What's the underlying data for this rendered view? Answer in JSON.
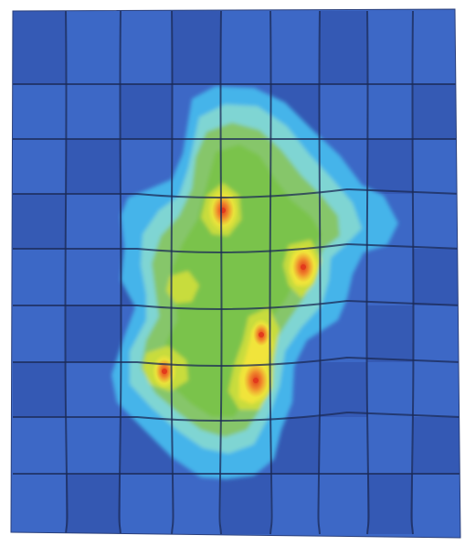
{
  "image": {
    "kind": "fem-contour-plot",
    "colors": {
      "background": "#ffffff",
      "mesh_base": "#3d68c6",
      "mesh_shade": "#3458b2",
      "mesh_line": "#1b2a55",
      "contour_levels": [
        "#45b4ea",
        "#7fd5d3",
        "#86c66a",
        "#7ac34c",
        "#c8dc3c",
        "#f1e43a",
        "#f08a2c",
        "#e23a1c"
      ]
    },
    "hotspots": [
      {
        "label": "",
        "level": 0.95
      },
      {
        "label": "",
        "level": 0.95
      },
      {
        "label": "",
        "level": 0.9
      },
      {
        "label": "",
        "level": 0.95
      },
      {
        "label": "",
        "level": 0.85
      }
    ]
  }
}
